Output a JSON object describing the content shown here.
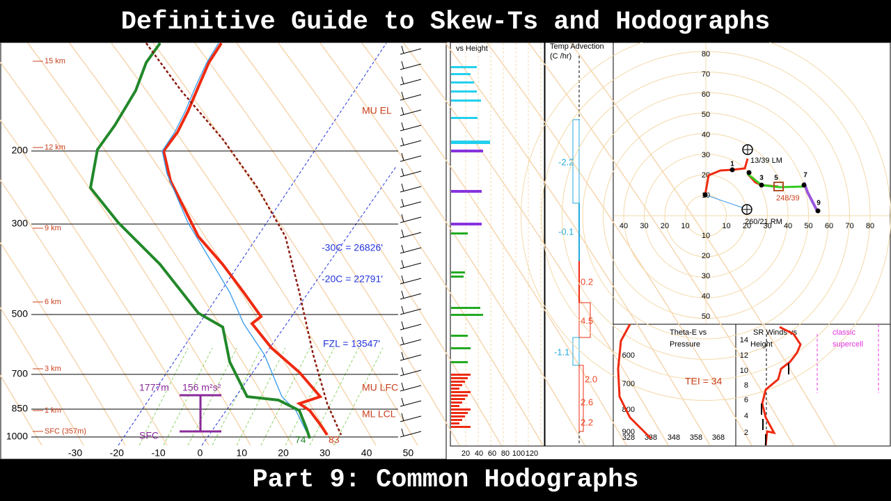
{
  "header": {
    "title": "Definitive Guide to Skew-Ts and Hodographs"
  },
  "footer": {
    "title": "Part 9: Common Hodographs"
  },
  "skew_t": {
    "pressure_labels": [
      "200",
      "300",
      "500",
      "700",
      "850",
      "1000"
    ],
    "height_labels": [
      "15 km",
      "12 km",
      "9 km",
      "6 km",
      "3 km",
      "1 km",
      "SFC (357m)"
    ],
    "temperature_labels": [
      "-30",
      "-20",
      "-10",
      "0",
      "10",
      "20",
      "30",
      "40",
      "50"
    ],
    "annotations": {
      "mu_el": "MU EL",
      "mu_lfc": "MU LFC",
      "ml_lcl": "ML LCL",
      "minus30": "-30C = 26826'",
      "minus20": "-20C = 22791'",
      "fzl": "FZL = 13547'",
      "depth": "1777m",
      "helicity": "156 m²s²",
      "sfc": "SFC",
      "dewpoint": "74",
      "temperature": "83"
    }
  },
  "wind_panel": {
    "title": "vs Height",
    "x_labels": [
      "20",
      "40",
      "60",
      "80",
      "100",
      "120"
    ]
  },
  "temp_advection": {
    "title": "Temp Advection",
    "unit": "(C /hr)",
    "values": [
      "-2.2",
      "-0.1",
      "0.2",
      "4.5",
      "-1.1",
      "2.0",
      "2.6",
      "2.2"
    ]
  },
  "hodograph": {
    "x_labels": [
      "40",
      "30",
      "20",
      "10",
      "10",
      "20",
      "30",
      "40",
      "50",
      "60",
      "70",
      "80"
    ],
    "y_labels_up": [
      "10",
      "20",
      "30",
      "40",
      "50",
      "60",
      "70",
      "80"
    ],
    "y_labels_down": [
      "10",
      "20",
      "30",
      "40",
      "50"
    ],
    "point_labels": [
      "1",
      "3",
      "5",
      "7",
      "9"
    ],
    "left_mover": "13/39 LM",
    "right_mover": "260/21 RM",
    "storm_motion": "248/39"
  },
  "theta_e": {
    "title_line1": "Theta-E vs",
    "title_line2": "Pressure",
    "y_labels": [
      "600",
      "700",
      "800",
      "900"
    ],
    "x_labels": [
      "328",
      "338",
      "348",
      "358",
      "368"
    ],
    "index": "TEI = 34"
  },
  "sr_winds": {
    "title_line1": "SR Winds vs",
    "title_line2": "Height",
    "y_labels": [
      "2",
      "4",
      "6",
      "8",
      "10",
      "12",
      "14"
    ],
    "label_line1": "classic",
    "label_line2": "supercell"
  }
}
